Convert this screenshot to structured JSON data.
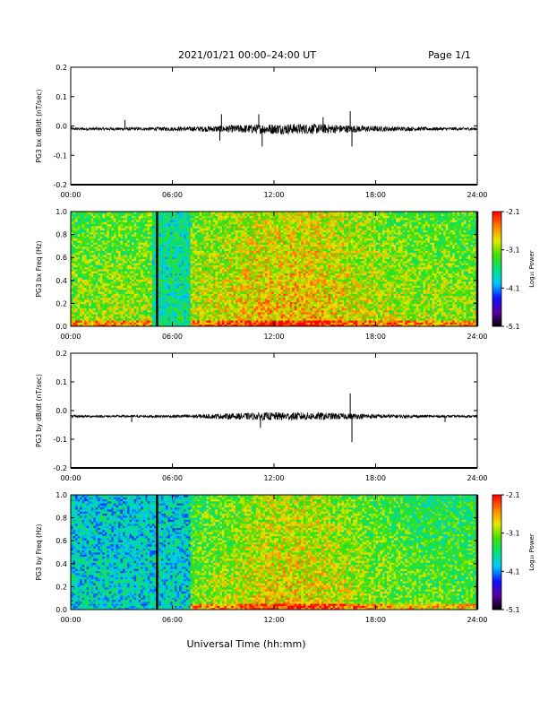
{
  "header": {
    "title": "2021/01/21  00:00–24:00 UT",
    "page": "Page 1/1"
  },
  "xaxis": {
    "label": "Universal Time (hh:mm)",
    "ticks": [
      "00:00",
      "06:00",
      "12:00",
      "18:00",
      "24:00"
    ]
  },
  "colorbar": {
    "label": "Log₁₀ Power",
    "ticks": [
      "-2.1",
      "-3.1",
      "-4.1",
      "-5.1"
    ],
    "colors": [
      "#000000",
      "#5a00a0",
      "#1010ff",
      "#00c8ff",
      "#00e080",
      "#40e000",
      "#e8e800",
      "#ff8000",
      "#ff0000"
    ]
  },
  "chart_data": [
    {
      "type": "line",
      "ylabel": "PG3 bx dB/dt (nT/sec)",
      "ylim": [
        -0.2,
        0.2
      ],
      "yticks": [
        "0.2",
        "0.1",
        "0.0",
        "-0.1",
        "-0.2"
      ],
      "xlim_hours": [
        0,
        24
      ],
      "baseline": -0.01,
      "noise_amplitude": 0.01,
      "spikes": [
        {
          "hour": 3.2,
          "value": 0.02
        },
        {
          "hour": 8.8,
          "value": -0.05
        },
        {
          "hour": 8.9,
          "value": 0.04
        },
        {
          "hour": 11.1,
          "value": 0.04
        },
        {
          "hour": 11.3,
          "value": -0.07
        },
        {
          "hour": 14.9,
          "value": 0.03
        },
        {
          "hour": 16.5,
          "value": 0.05
        },
        {
          "hour": 16.6,
          "value": -0.07
        }
      ]
    },
    {
      "type": "heatmap",
      "ylabel": "PG3 bx Freq (Hz)",
      "ylim": [
        0.0,
        1.0
      ],
      "yticks": [
        "1.0",
        "0.8",
        "0.6",
        "0.4",
        "0.2",
        "0.0"
      ],
      "xlim_hours": [
        0,
        24
      ],
      "zlim": [
        -5.1,
        -2.1
      ],
      "gap_hours": [
        5.1,
        24.0
      ],
      "quiet_interval_hours": [
        4.8,
        7.0
      ],
      "background_level": -3.3,
      "active_level": -2.9
    },
    {
      "type": "line",
      "ylabel": "PG3 by dB/dt (nT/sec)",
      "ylim": [
        -0.2,
        0.2
      ],
      "yticks": [
        "0.2",
        "0.1",
        "0.0",
        "-0.1",
        "-0.2"
      ],
      "xlim_hours": [
        0,
        24
      ],
      "baseline": -0.02,
      "noise_amplitude": 0.008,
      "spikes": [
        {
          "hour": 3.6,
          "value": -0.04
        },
        {
          "hour": 11.2,
          "value": -0.06
        },
        {
          "hour": 16.5,
          "value": 0.06
        },
        {
          "hour": 16.6,
          "value": -0.11
        },
        {
          "hour": 22.1,
          "value": -0.04
        }
      ]
    },
    {
      "type": "heatmap",
      "ylabel": "PG3 by Freq (Hz)",
      "ylim": [
        0.0,
        1.0
      ],
      "yticks": [
        "1.0",
        "0.8",
        "0.6",
        "0.4",
        "0.2",
        "0.0"
      ],
      "xlim_hours": [
        0,
        24
      ],
      "zlim": [
        -5.1,
        -2.1
      ],
      "gap_hours": [
        5.1,
        24.0
      ],
      "quiet_interval_hours": [
        0.0,
        7.0
      ],
      "background_level": -3.5,
      "active_level": -3.0
    }
  ]
}
